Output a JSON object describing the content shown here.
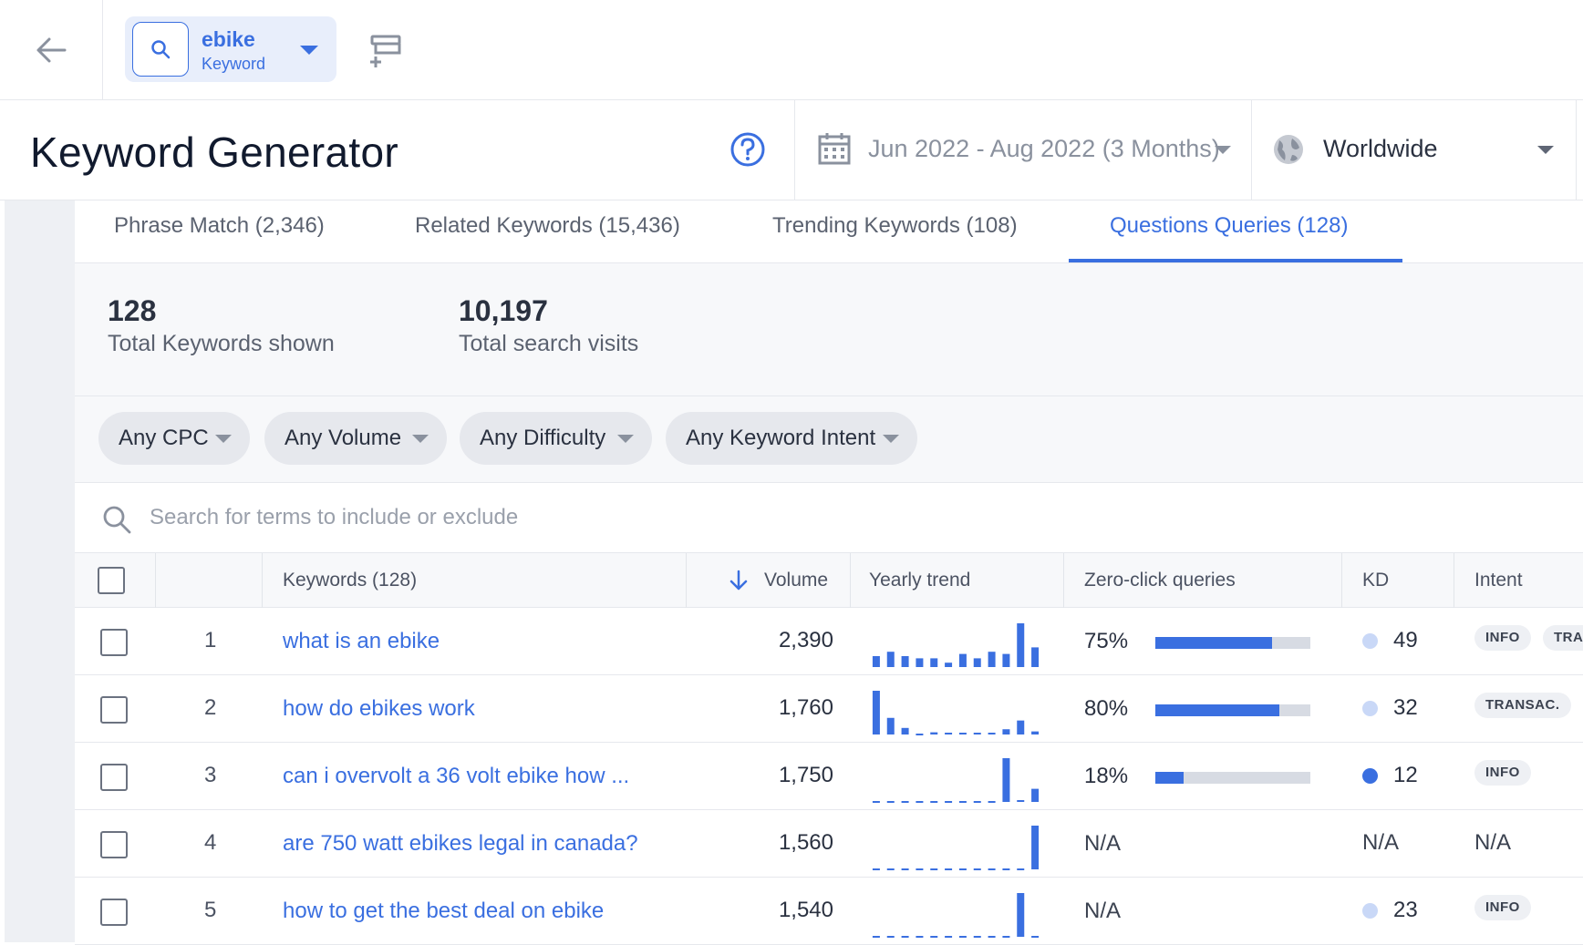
{
  "topbar": {
    "keyword": "ebike",
    "keyword_type": "Keyword"
  },
  "header": {
    "title": "Keyword Generator",
    "date_range": "Jun 2022 - Aug 2022 (3 Months)",
    "region": "Worldwide"
  },
  "tabs": [
    {
      "label": "Phrase Match (2,346)",
      "active": false
    },
    {
      "label": "Related Keywords (15,436)",
      "active": false
    },
    {
      "label": "Trending Keywords (108)",
      "active": false
    },
    {
      "label": "Questions Queries (128)",
      "active": true
    }
  ],
  "stats": {
    "total_keywords_value": "128",
    "total_keywords_label": "Total Keywords shown",
    "total_visits_value": "10,197",
    "total_visits_label": "Total search visits"
  },
  "filters": [
    "Any CPC",
    "Any Volume",
    "Any Difficulty",
    "Any Keyword Intent"
  ],
  "search": {
    "placeholder": "Search for terms to include or exclude"
  },
  "table": {
    "headers": {
      "keywords": "Keywords (128)",
      "volume": "Volume",
      "trend": "Yearly trend",
      "zero_click": "Zero-click queries",
      "kd": "KD",
      "intent": "Intent"
    },
    "rows": [
      {
        "index": "1",
        "keyword": "what is an ebike",
        "volume": "2,390",
        "trend": [
          0.25,
          0.35,
          0.25,
          0.2,
          0.2,
          0.1,
          0.3,
          0.2,
          0.35,
          0.3,
          1.0,
          0.45
        ],
        "zero_click": "75%",
        "zero_click_fraction": 0.75,
        "kd": "49",
        "kd_color": "#c9d8f7",
        "intents": [
          "INFO",
          "TRAN"
        ]
      },
      {
        "index": "2",
        "keyword": "how do ebikes work",
        "volume": "1,760",
        "trend": [
          1.0,
          0.38,
          0.15,
          0.0,
          0.05,
          0.03,
          0.03,
          0.03,
          0.03,
          0.12,
          0.32,
          0.07
        ],
        "zero_click": "80%",
        "zero_click_fraction": 0.8,
        "kd": "32",
        "kd_color": "#c9d8f7",
        "intents": [
          "TRANSAC."
        ]
      },
      {
        "index": "3",
        "keyword": "can i overvolt a 36 volt ebike how ...",
        "volume": "1,750",
        "trend": [
          0.0,
          0.0,
          0.0,
          0.0,
          0.0,
          0.0,
          0.0,
          0.0,
          0.0,
          1.0,
          0.02,
          0.3
        ],
        "zero_click": "18%",
        "zero_click_fraction": 0.18,
        "kd": "12",
        "kd_color": "#3a6fe0",
        "intents": [
          "INFO"
        ]
      },
      {
        "index": "4",
        "keyword": "are 750 watt ebikes legal in canada?",
        "volume": "1,560",
        "trend": [
          0.0,
          0.0,
          0.0,
          0.0,
          0.0,
          0.0,
          0.0,
          0.0,
          0.0,
          0.0,
          0.0,
          1.0
        ],
        "zero_click": "N/A",
        "zero_click_fraction": null,
        "kd": "N/A",
        "kd_color": null,
        "intents": [],
        "intent_text": "N/A"
      },
      {
        "index": "5",
        "keyword": "how to get the best deal on ebike",
        "volume": "1,540",
        "trend": [
          0.0,
          0.0,
          0.0,
          0.0,
          0.0,
          0.0,
          0.0,
          0.0,
          0.0,
          0.0,
          1.0,
          0.0
        ],
        "zero_click": "N/A",
        "zero_click_fraction": null,
        "kd": "23",
        "kd_color": "#c9d8f7",
        "intents": [
          "INFO"
        ]
      }
    ]
  },
  "colors": {
    "accent": "#3a6fe0",
    "kd_low": "#3a6fe0",
    "kd_light": "#c9d8f7"
  }
}
